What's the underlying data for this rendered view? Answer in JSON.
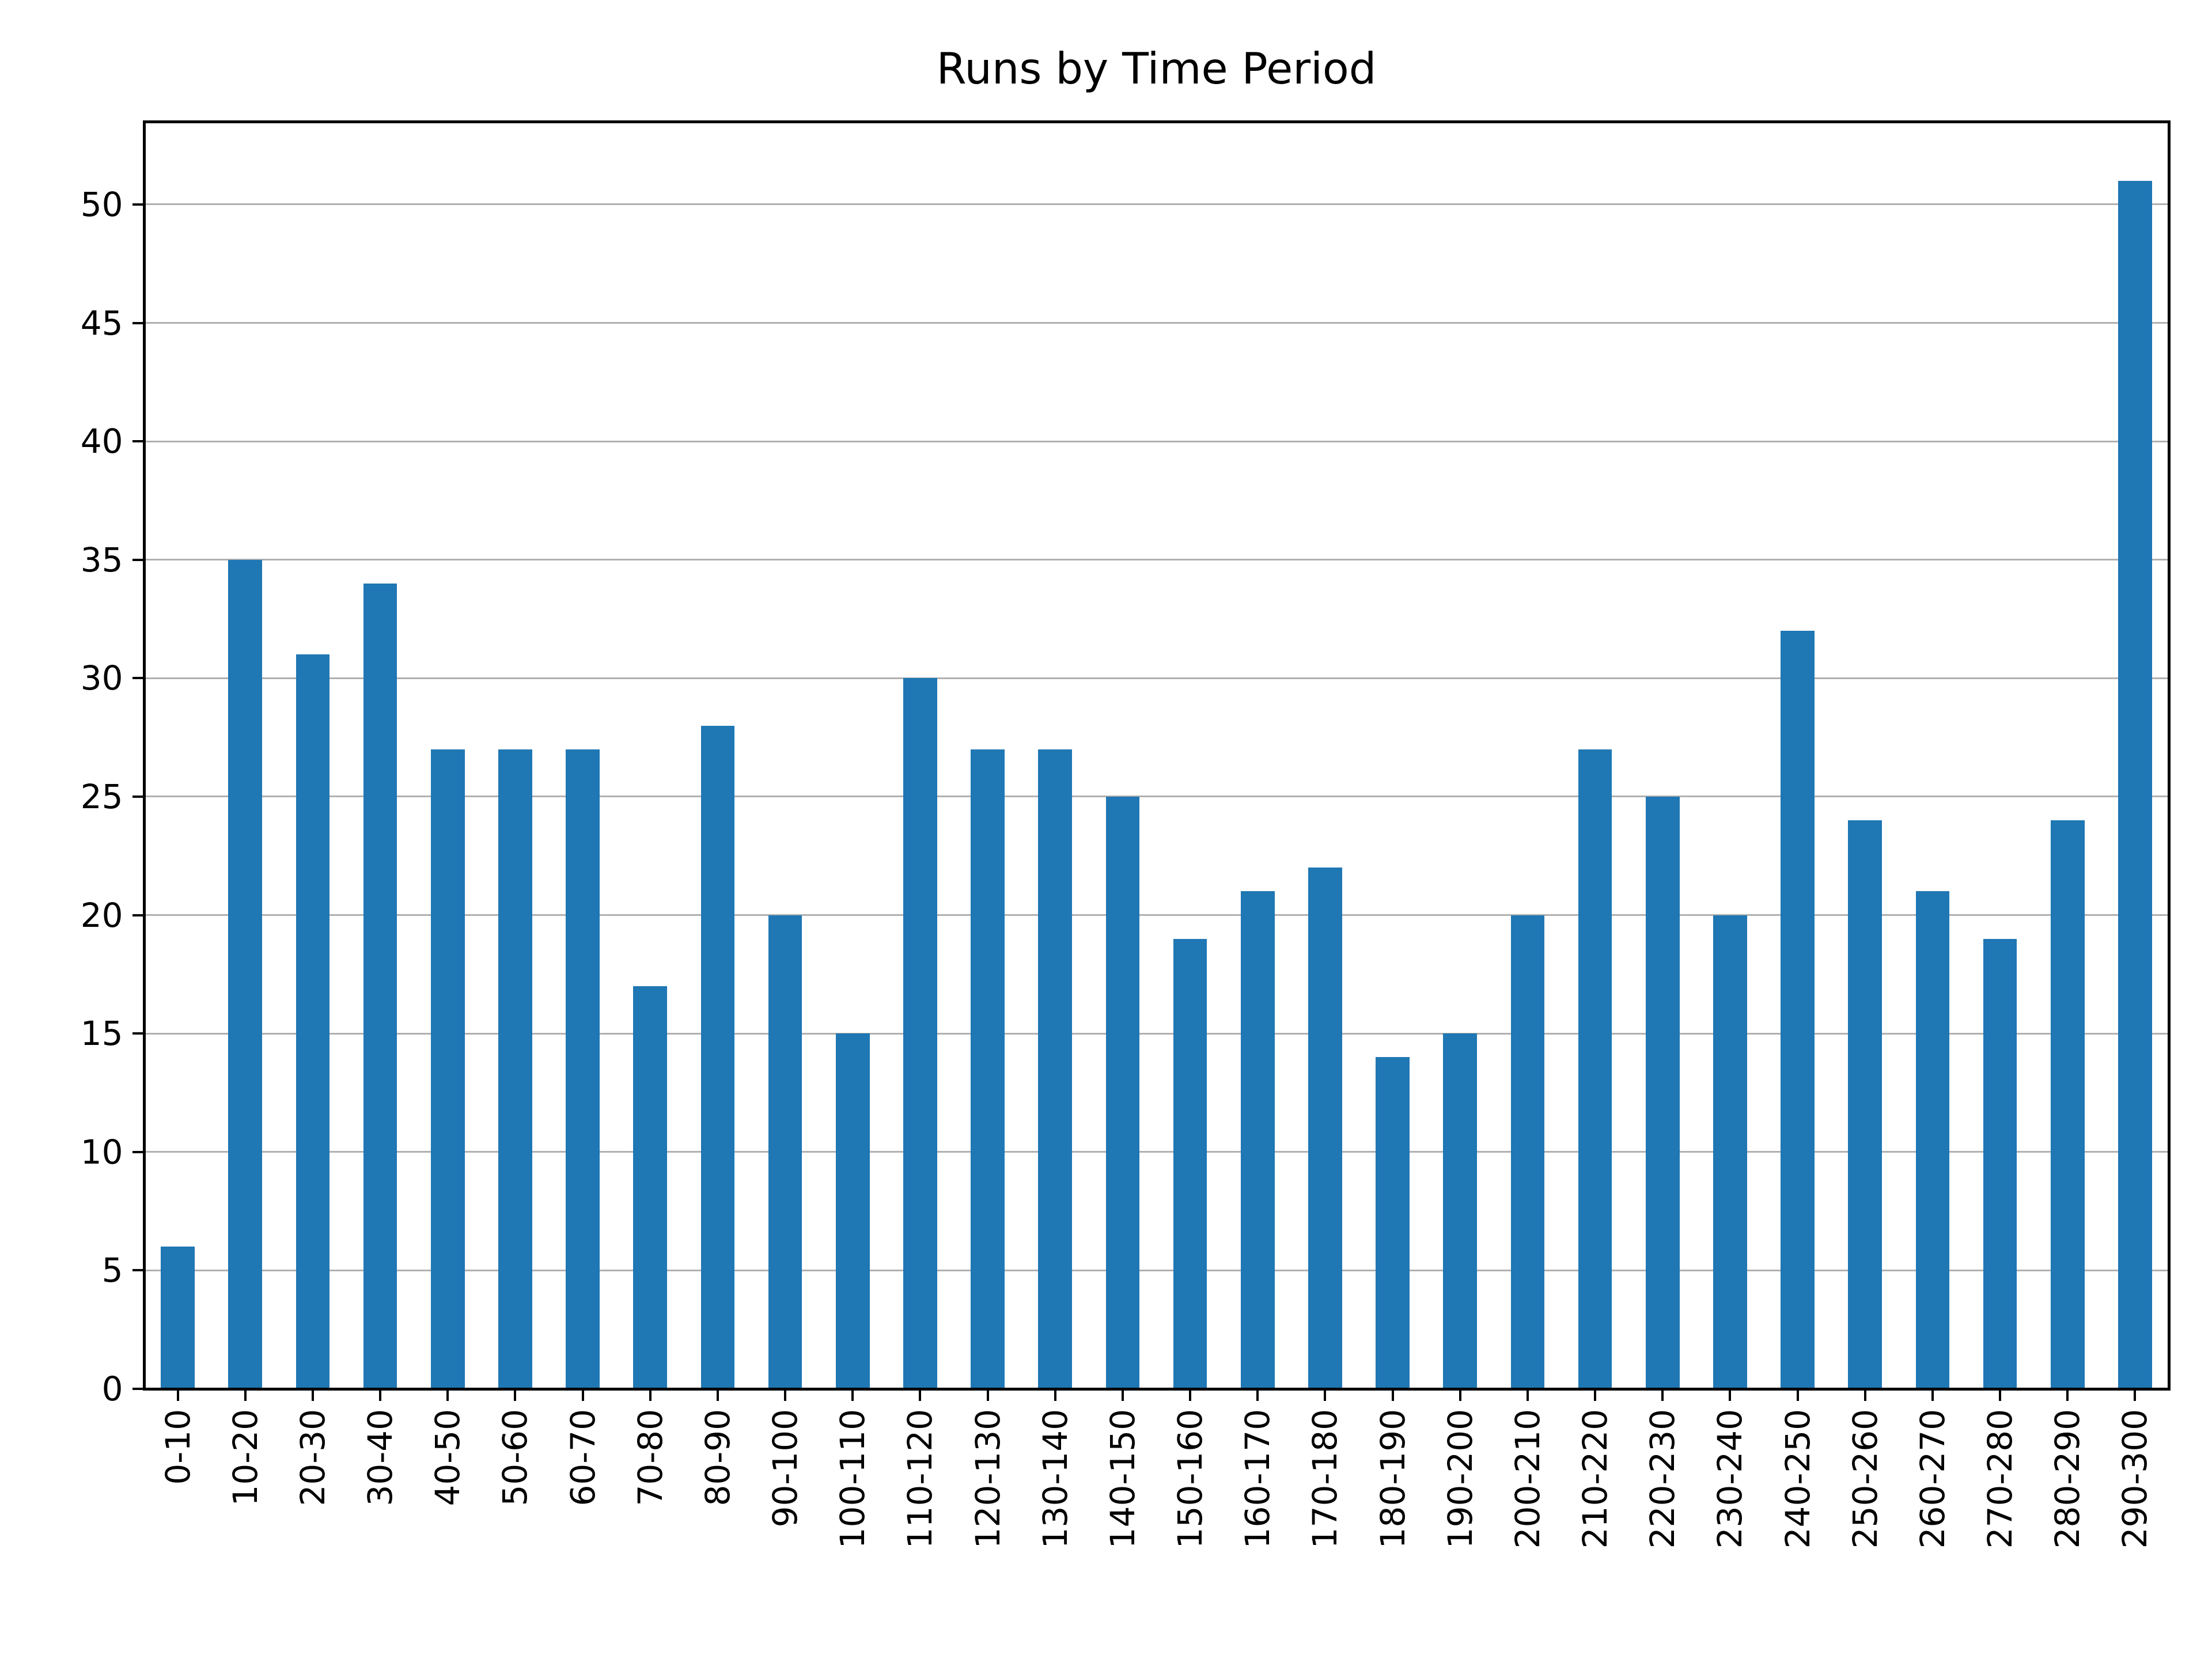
{
  "chart_data": {
    "type": "bar",
    "title": "Runs by Time Period",
    "categories": [
      "0-10",
      "10-20",
      "20-30",
      "30-40",
      "40-50",
      "50-60",
      "60-70",
      "70-80",
      "80-90",
      "90-100",
      "100-110",
      "110-120",
      "120-130",
      "130-140",
      "140-150",
      "150-160",
      "160-170",
      "170-180",
      "180-190",
      "190-200",
      "200-210",
      "210-220",
      "220-230",
      "230-240",
      "240-250",
      "250-260",
      "260-270",
      "270-280",
      "280-290",
      "290-300"
    ],
    "values": [
      6,
      35,
      31,
      34,
      27,
      27,
      27,
      17,
      28,
      20,
      15,
      30,
      27,
      27,
      25,
      19,
      21,
      22,
      14,
      15,
      20,
      27,
      25,
      20,
      32,
      24,
      21,
      19,
      24,
      51
    ],
    "xlabel": "",
    "ylabel": "",
    "ylim": [
      0,
      53.5
    ],
    "yticks": [
      0,
      5,
      10,
      15,
      20,
      25,
      30,
      35,
      40,
      45,
      50
    ],
    "bar_color": "#1f77b4",
    "grid": true,
    "grid_color": "#b0b0b0",
    "spine_color": "#000000",
    "legend_position": "none"
  }
}
